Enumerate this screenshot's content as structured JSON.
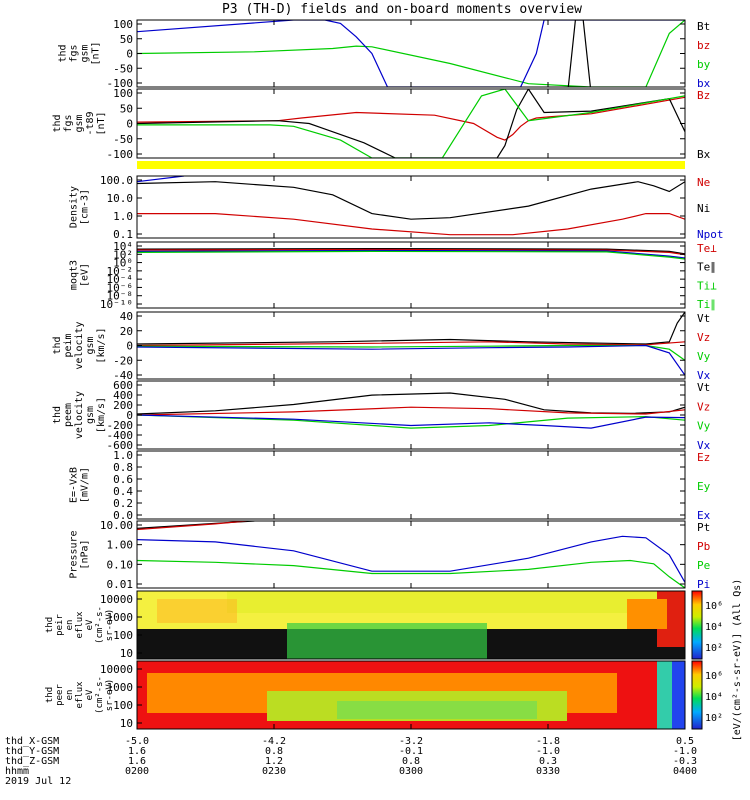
{
  "title": "P3 (TH-D) fields and on-board moments overview",
  "colors": {
    "black": "#000000",
    "red": "#d00000",
    "green": "#00cc00",
    "blue": "#0000cc",
    "yellow": "#ffff00",
    "spec_bg": "#ee1111"
  },
  "chart_data": [
    {
      "type": "line",
      "ylabel": [
        "thd",
        "fgs",
        "gsm",
        "[nT]"
      ],
      "yticks": [
        "100",
        "50",
        "0",
        "-50",
        "-100"
      ],
      "ylim": [
        -100,
        100
      ],
      "legend": [
        {
          "label": "Bt",
          "color": "#000000"
        },
        {
          "label": "bz",
          "color": "#d00000"
        },
        {
          "label": "by",
          "color": "#00cc00"
        },
        {
          "label": "bx",
          "color": "#0000cc"
        }
      ],
      "series": [
        {
          "color": "#00cc00",
          "x": [
            200,
            215,
            225,
            228,
            230,
            240,
            250,
            258,
            265,
            268,
            270,
            270.5
          ],
          "y": [
            0,
            5,
            15,
            22,
            20,
            -30,
            -90,
            -100,
            -100,
            60,
            100,
            100
          ]
        },
        {
          "color": "#0000cc",
          "x": [
            200,
            220,
            224,
            226,
            228,
            230,
            232,
            236,
            249,
            251,
            252,
            272,
            273,
            273.6
          ],
          "y": [
            65,
            100,
            100,
            90,
            50,
            0,
            -100,
            -100,
            -100,
            0,
            100,
            100,
            -100,
            100
          ]
        },
        {
          "color": "#000000",
          "x": [
            200,
            250,
            255,
            256,
            257,
            258,
            260,
            270
          ],
          "y": [
            -120,
            -120,
            -120,
            100,
            100,
            -120,
            -120,
            -120
          ]
        }
      ]
    },
    {
      "type": "line",
      "ylabel": [
        "thd",
        "fgs",
        "gsm",
        "-t89",
        "[nT]"
      ],
      "yticks": [
        "100",
        "50",
        "0",
        "-50",
        "-100"
      ],
      "ylim": [
        -125,
        125
      ],
      "legend": [
        {
          "label": "Bz",
          "color": "#d00000"
        },
        {
          "label": "Bx",
          "color": "#000000"
        }
      ],
      "series": [
        {
          "color": "#d00000",
          "x": [
            200,
            218,
            221,
            228,
            238,
            243,
            246,
            247,
            248,
            249,
            250,
            251,
            253,
            258,
            270
          ],
          "y": [
            5,
            10,
            20,
            40,
            30,
            0,
            -50,
            -60,
            -40,
            -10,
            10,
            20,
            25,
            35,
            95
          ]
        },
        {
          "color": "#000000",
          "x": [
            200,
            218,
            222,
            229,
            233,
            243,
            246,
            247,
            248.5,
            250,
            252,
            258,
            268,
            270
          ],
          "y": [
            0,
            10,
            0,
            -70,
            -125,
            -125,
            -125,
            -80,
            50,
            125,
            40,
            45,
            90,
            -30
          ]
        },
        {
          "color": "#00cc00",
          "x": [
            200,
            217,
            220,
            226,
            230,
            235,
            239,
            244,
            247,
            250,
            258,
            270
          ],
          "y": [
            -5,
            -5,
            -10,
            -60,
            -125,
            -125,
            -125,
            100,
            125,
            10,
            40,
            100
          ]
        }
      ]
    },
    {
      "type": "line",
      "ylabel": [
        "Density",
        "[cm-3]"
      ],
      "yticks": [
        "100.0",
        "10.0",
        "1.0",
        "0.1"
      ],
      "ylim": [
        0.1,
        200
      ],
      "scale": "log",
      "legend": [
        {
          "label": "Ne",
          "color": "#d00000"
        },
        {
          "label": "Ni",
          "color": "#000000"
        },
        {
          "label": "Npot",
          "color": "#0000cc"
        }
      ],
      "series": [
        {
          "color": "#000000",
          "x": [
            200,
            210,
            220,
            225,
            230,
            235,
            240,
            250,
            258,
            264,
            266,
            268,
            270
          ],
          "y": [
            80,
            100,
            50,
            20,
            2,
            1,
            1.2,
            5,
            40,
            100,
            60,
            30,
            100
          ]
        },
        {
          "color": "#d00000",
          "x": [
            200,
            210,
            220,
            230,
            240,
            248,
            255,
            262,
            265,
            268,
            270
          ],
          "y": [
            2,
            2,
            1,
            0.3,
            0.15,
            0.15,
            0.3,
            1,
            2,
            2,
            1
          ]
        },
        {
          "color": "#0000cc",
          "x": [
            200,
            206
          ],
          "y": [
            100,
            200
          ]
        }
      ]
    },
    {
      "type": "line",
      "ylabel": [
        "moqt3",
        "[eV]"
      ],
      "yticks": [
        "10⁴",
        "10²",
        "10⁰",
        "10⁻²",
        "10⁻⁴",
        "10⁻⁶",
        "10⁻⁸",
        "10⁻¹⁰"
      ],
      "ylim": [
        -10,
        4
      ],
      "legend": [
        {
          "label": "Te⊥",
          "color": "#d00000"
        },
        {
          "label": "Te∥",
          "color": "#000000"
        },
        {
          "label": "Ti⊥",
          "color": "#00cc00"
        },
        {
          "label": "Ti∥",
          "color": "#00cc00"
        }
      ],
      "series": [
        {
          "color": "#000000",
          "x": [
            200,
            230,
            260,
            268,
            270
          ],
          "y": [
            2.5,
            2.6,
            2.5,
            2.0,
            1.5
          ]
        },
        {
          "color": "#d00000",
          "x": [
            200,
            230,
            260,
            268,
            270
          ],
          "y": [
            2.3,
            2.4,
            2.3,
            1.8,
            1.3
          ]
        },
        {
          "color": "#0000cc",
          "x": [
            200,
            230,
            260,
            268,
            270
          ],
          "y": [
            2.0,
            2.2,
            2.1,
            1.0,
            0.6
          ]
        },
        {
          "color": "#00cc00",
          "x": [
            200,
            230,
            260,
            268,
            270
          ],
          "y": [
            1.8,
            2.0,
            1.9,
            0.8,
            0.4
          ]
        }
      ]
    },
    {
      "type": "line",
      "ylabel": [
        "thd",
        "peim",
        "velocity",
        "gsm",
        "[km/s]"
      ],
      "yticks": [
        "40",
        "20",
        "0",
        "-20",
        "-40"
      ],
      "ylim": [
        -45,
        45
      ],
      "legend": [
        {
          "label": "Vt",
          "color": "#000000"
        },
        {
          "label": "Vz",
          "color": "#d00000"
        },
        {
          "label": "Vy",
          "color": "#00cc00"
        },
        {
          "label": "Vx",
          "color": "#0000cc"
        }
      ],
      "series": [
        {
          "color": "#000000",
          "x": [
            200,
            225,
            240,
            250,
            265,
            268,
            269,
            270
          ],
          "y": [
            2,
            5,
            8,
            5,
            2,
            5,
            30,
            45
          ]
        },
        {
          "color": "#d00000",
          "x": [
            200,
            230,
            245,
            255,
            265,
            270
          ],
          "y": [
            0,
            3,
            5,
            2,
            1,
            5
          ]
        },
        {
          "color": "#00cc00",
          "x": [
            200,
            230,
            245,
            255,
            265,
            268,
            270
          ],
          "y": [
            -1,
            -2,
            -1,
            0,
            0,
            -5,
            -20
          ]
        },
        {
          "color": "#0000cc",
          "x": [
            200,
            230,
            245,
            255,
            265,
            268,
            270
          ],
          "y": [
            -2,
            -5,
            -3,
            -2,
            0,
            -10,
            -40
          ]
        }
      ]
    },
    {
      "type": "line",
      "ylabel": [
        "thd",
        "peem",
        "velocity",
        "gsm",
        "[km/s]"
      ],
      "yticks": [
        "600",
        "400",
        "200",
        "0",
        "-200",
        "-400",
        "-600"
      ],
      "ylim": [
        -650,
        650
      ],
      "legend": [
        {
          "label": "Vt",
          "color": "#000000"
        },
        {
          "label": "Vz",
          "color": "#d00000"
        },
        {
          "label": "Vy",
          "color": "#00cc00"
        },
        {
          "label": "Vx",
          "color": "#0000cc"
        }
      ],
      "series": [
        {
          "color": "#000000",
          "x": [
            200,
            210,
            220,
            230,
            240,
            247,
            252,
            258,
            263,
            268,
            270
          ],
          "y": [
            20,
            80,
            200,
            380,
            420,
            300,
            100,
            40,
            30,
            60,
            150
          ]
        },
        {
          "color": "#d00000",
          "x": [
            200,
            220,
            235,
            245,
            255,
            265,
            270
          ],
          "y": [
            0,
            60,
            150,
            120,
            40,
            20,
            100
          ]
        },
        {
          "color": "#00cc00",
          "x": [
            200,
            220,
            235,
            245,
            255,
            265,
            270
          ],
          "y": [
            0,
            -100,
            -250,
            -200,
            -60,
            -30,
            -100
          ]
        },
        {
          "color": "#0000cc",
          "x": [
            200,
            220,
            235,
            245,
            252,
            258,
            265,
            270
          ],
          "y": [
            0,
            -80,
            -200,
            -150,
            -200,
            -250,
            -40,
            -50
          ]
        }
      ]
    },
    {
      "type": "line",
      "ylabel": [
        "E=-VxB",
        "[mV/m]"
      ],
      "yticks": [
        "1.0",
        "0.8",
        "0.6",
        "0.4",
        "0.2",
        "0.0"
      ],
      "ylim": [
        0,
        1
      ],
      "legend": [
        {
          "label": "Ez",
          "color": "#d00000"
        },
        {
          "label": "Ey",
          "color": "#00cc00"
        },
        {
          "label": "Ex",
          "color": "#0000cc"
        }
      ],
      "series": []
    },
    {
      "type": "line",
      "ylabel": [
        "Pressure",
        "[nPa]"
      ],
      "yticks": [
        "10.00",
        "1.00",
        "0.10",
        "0.01"
      ],
      "ylim": [
        0.005,
        20
      ],
      "scale": "log",
      "legend": [
        {
          "label": "Pt",
          "color": "#000000"
        },
        {
          "label": "Pb",
          "color": "#d00000"
        },
        {
          "label": "Pe",
          "color": "#00cc00"
        },
        {
          "label": "Pi",
          "color": "#0000cc"
        }
      ],
      "series": [
        {
          "color": "#000000",
          "x": [
            200,
            210,
            215
          ],
          "y": [
            8,
            15,
            20
          ]
        },
        {
          "color": "#d00000",
          "x": [
            200,
            210,
            214
          ],
          "y": [
            7,
            14,
            20
          ]
        },
        {
          "color": "#0000cc",
          "x": [
            200,
            210,
            220,
            230,
            240,
            250,
            258,
            262,
            265,
            268,
            270
          ],
          "y": [
            2,
            1.5,
            0.5,
            0.04,
            0.04,
            0.2,
            1.5,
            3,
            2.5,
            0.3,
            0.01
          ]
        },
        {
          "color": "#00cc00",
          "x": [
            200,
            210,
            220,
            230,
            240,
            250,
            258,
            263,
            266,
            268,
            270
          ],
          "y": [
            0.15,
            0.12,
            0.08,
            0.03,
            0.03,
            0.05,
            0.12,
            0.15,
            0.1,
            0.02,
            0.005
          ]
        }
      ]
    }
  ],
  "spectrograms": [
    {
      "type": "heatmap",
      "ylabel": [
        "thd",
        "peir",
        "en",
        "eflux",
        "eV",
        "(cm²-s-",
        "sr-eV)"
      ],
      "yticks": [
        "10000",
        "1000",
        "100",
        "10"
      ],
      "colorbar_ticks": [
        "10⁶",
        "10⁴",
        "10²"
      ]
    },
    {
      "type": "heatmap",
      "ylabel": [
        "thd",
        "peer",
        "en",
        "eflux",
        "eV",
        "(cm²-s-",
        "sr-eV)"
      ],
      "yticks": [
        "10000",
        "1000",
        "100",
        "10"
      ],
      "colorbar_ticks": [
        "10⁶",
        "10⁴",
        "10²"
      ]
    }
  ],
  "colorbar_label": "[eV/(cm²-s-sr-eV)]  (All Qs)",
  "xaxis": {
    "rows": [
      {
        "label": "thd_X-GSM",
        "values": [
          "-5.0",
          "-4.2",
          "-3.2",
          "-1.8",
          "0.5"
        ]
      },
      {
        "label": "thd_Y-GSM",
        "values": [
          "1.6",
          "0.8",
          "-0.1",
          "-1.0",
          "-1.0"
        ]
      },
      {
        "label": "thd_Z-GSM",
        "values": [
          "1.6",
          "1.2",
          "0.8",
          "0.3",
          "-0.3"
        ]
      },
      {
        "label": "hhmm",
        "values": [
          "0200",
          "0230",
          "0300",
          "0330",
          "0400"
        ]
      }
    ],
    "date": "2019 Jul 12"
  }
}
